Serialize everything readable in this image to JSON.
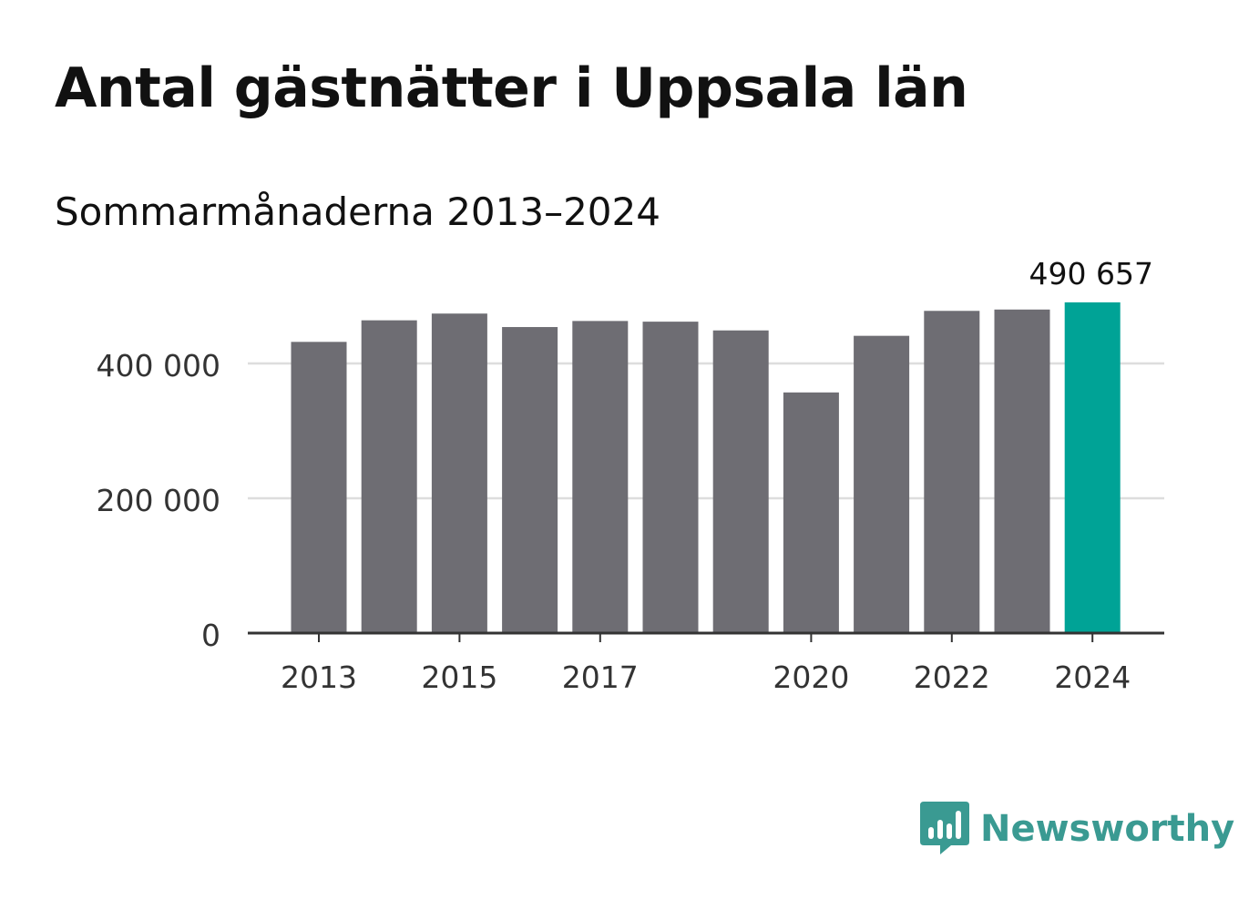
{
  "header": {
    "title": "Antal gästnätter i Uppsala län",
    "subtitle": "Sommarmånaderna 2013–2024"
  },
  "brand": {
    "name": "Newsworthy",
    "icon": "newsworthy-logo-icon"
  },
  "colors": {
    "bar": "#6e6d73",
    "highlight": "#00a396",
    "grid": "#dddddd",
    "axis": "#333333",
    "brand": "#3a9a92"
  },
  "chart_data": {
    "type": "bar",
    "title": "Antal gästnätter i Uppsala län",
    "subtitle": "Sommarmånaderna 2013–2024",
    "categories": [
      "2013",
      "2014",
      "2015",
      "2016",
      "2017",
      "2018",
      "2019",
      "2020",
      "2021",
      "2022",
      "2023",
      "2024"
    ],
    "values": [
      432000,
      464000,
      474000,
      454000,
      463000,
      462000,
      449000,
      357000,
      441000,
      478000,
      480000,
      490657
    ],
    "highlight_index": 11,
    "x_tick_labels": [
      "2013",
      "2015",
      "2017",
      "2020",
      "2022",
      "2024"
    ],
    "y_ticks": [
      0,
      200000,
      400000
    ],
    "y_tick_labels": [
      "0",
      "200 000",
      "400 000"
    ],
    "ylim": [
      0,
      500000
    ],
    "data_labels": [
      {
        "category": "2024",
        "text": "490 657"
      }
    ],
    "xlabel": "",
    "ylabel": "",
    "grid": true,
    "legend": "none"
  }
}
